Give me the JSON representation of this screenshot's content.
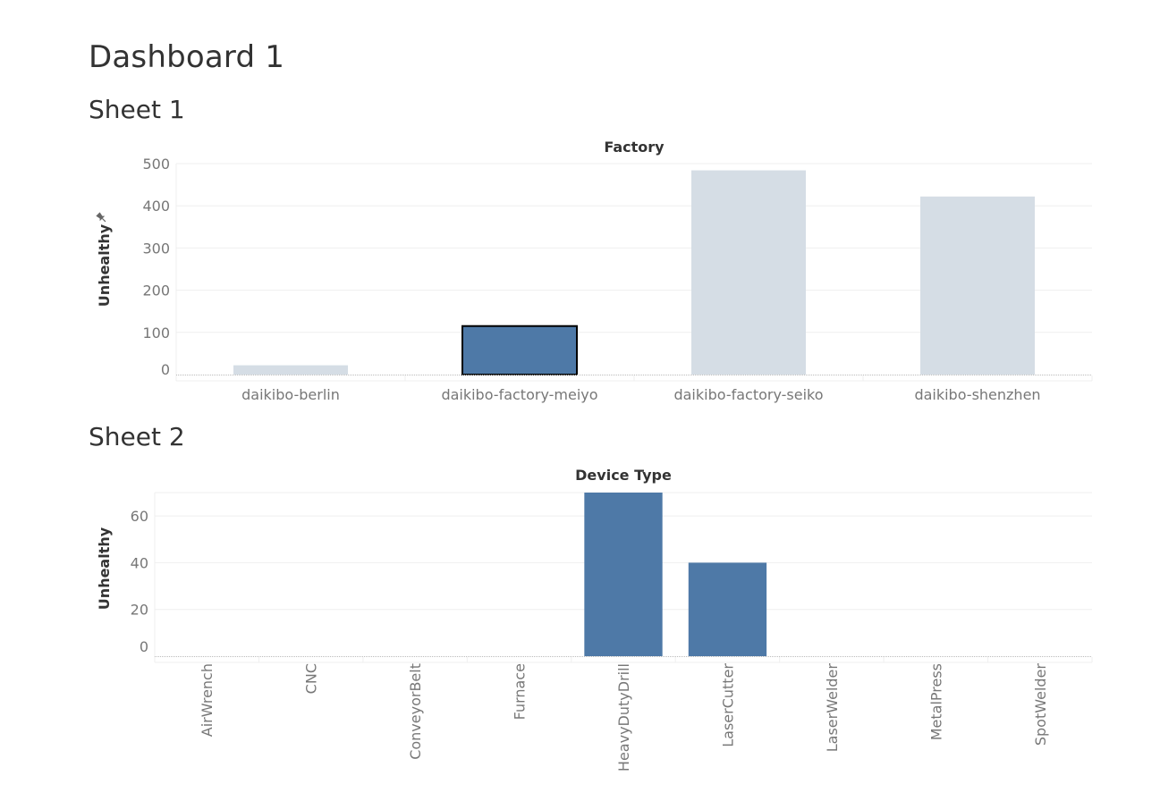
{
  "dashboard": {
    "title": "Dashboard 1"
  },
  "sheets": [
    {
      "title": "Sheet 1"
    },
    {
      "title": "Sheet 2"
    }
  ],
  "colors": {
    "bar_selected": "#4e79a7",
    "bar_faded": "#d5dde5",
    "gridline": "#efefef",
    "tick_text": "#777777",
    "axis_title": "#333333",
    "pin_icon": "#666666"
  },
  "icons": {
    "axis_pin": "pin-icon"
  },
  "chart_data": [
    {
      "type": "bar",
      "header": "Factory",
      "ylabel": "Unhealthy",
      "categories": [
        "daikibo-berlin",
        "daikibo-factory-meiyo",
        "daikibo-factory-seiko",
        "daikibo-shenzhen"
      ],
      "values": [
        22,
        115,
        484,
        422
      ],
      "ylim": [
        0,
        500
      ],
      "yticks": [
        0,
        100,
        200,
        300,
        400,
        500
      ],
      "highlighted": [
        "daikibo-factory-meiyo"
      ],
      "grid": true
    },
    {
      "type": "bar",
      "header": "Device Type",
      "ylabel": "Unhealthy",
      "categories": [
        "AirWrench",
        "CNC",
        "ConveyorBelt",
        "Furnace",
        "HeavyDutyDrill",
        "LaserCutter",
        "LaserWelder",
        "MetalPress",
        "SpotWelder"
      ],
      "values": [
        0,
        0,
        0,
        0,
        70,
        40,
        0,
        0,
        0
      ],
      "ylim": [
        0,
        70
      ],
      "yticks": [
        0,
        20,
        40,
        60
      ],
      "grid": true
    }
  ]
}
